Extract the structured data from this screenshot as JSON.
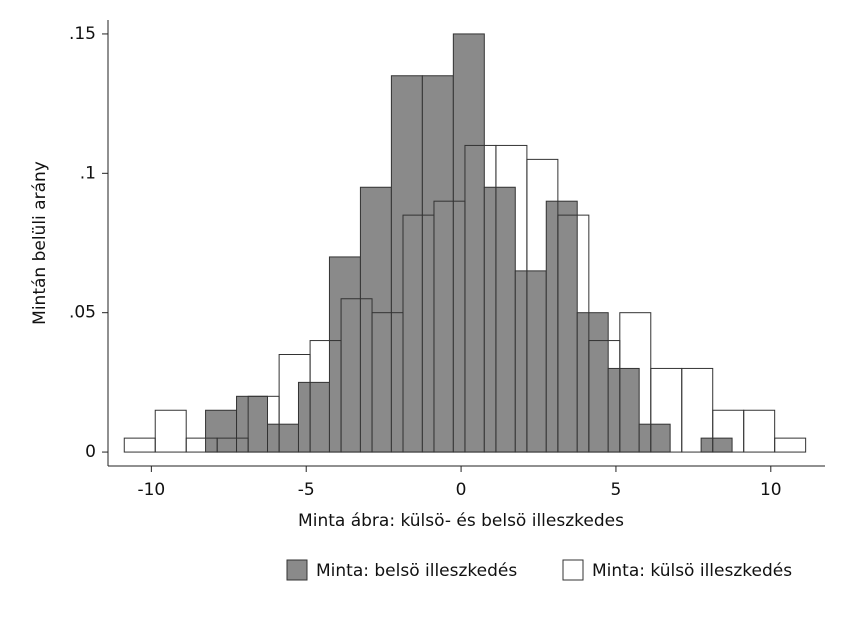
{
  "chart_data": {
    "type": "histogram",
    "x_label": "Minta ábra: külsö- és belsö illeszkedes",
    "y_label": "Mintán belüli arány",
    "xlim": [
      -11.4,
      11.75
    ],
    "ylim": [
      -0.005,
      0.155
    ],
    "xticks": [
      -10,
      -5,
      0,
      5,
      10
    ],
    "yticks": [
      0,
      {
        "value": 0.05,
        "label": ".05"
      },
      {
        "value": 0.1,
        "label": ".1"
      },
      {
        "value": 0.15,
        "label": ".15"
      }
    ],
    "series": [
      {
        "name": "Minta: belsö illeszkedés",
        "color": "#8a8a8a",
        "bins": [
          -8.25,
          -7.25,
          -6.25,
          -5.25,
          -4.25,
          -3.25,
          -2.25,
          -1.25,
          -0.25,
          0.75,
          1.75,
          2.75,
          3.75,
          4.75,
          5.75,
          6.75,
          7.75,
          8.75
        ],
        "values": [
          0.015,
          0.02,
          0.01,
          0.025,
          0.07,
          0.095,
          0.135,
          0.135,
          0.15,
          0.095,
          0.065,
          0.09,
          0.05,
          0.03,
          0.01,
          0,
          0.005
        ]
      },
      {
        "name": "Minta: külsö illeszkedés",
        "color": "#ffffff",
        "bins": [
          -10.875,
          -9.875,
          -8.875,
          -7.875,
          -6.875,
          -5.875,
          -4.875,
          -3.875,
          -2.875,
          -1.875,
          -0.875,
          0.125,
          1.125,
          2.125,
          3.125,
          4.125,
          5.125,
          6.125,
          7.125,
          8.125,
          9.125,
          10.125,
          11.125
        ],
        "values": [
          0.005,
          0.015,
          0.005,
          0.005,
          0.02,
          0.035,
          0.04,
          0.055,
          0.05,
          0.085,
          0.09,
          0.11,
          0.11,
          0.105,
          0.085,
          0.04,
          0.05,
          0.03,
          0.03,
          0.015,
          0.015,
          0.005
        ]
      }
    ]
  }
}
